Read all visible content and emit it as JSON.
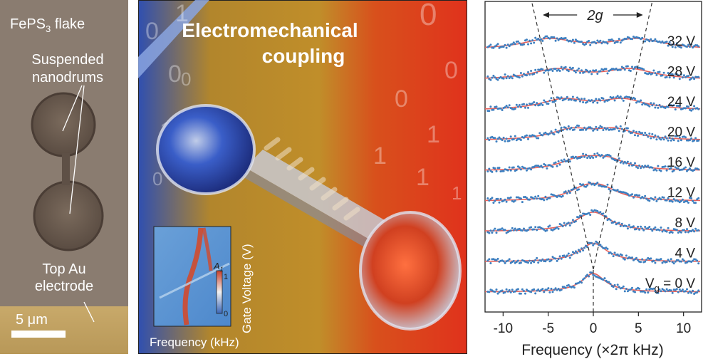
{
  "panel_a": {
    "label_flake": "FePS",
    "label_flake_sub": "3",
    "label_flake_suffix": " flake",
    "label_nanodrums_line1": "Suspended",
    "label_nanodrums_line2": "nanodrums",
    "label_electrode_line1": "Top Au",
    "label_electrode_line2": "electrode",
    "scale_bar_label": "5 μm"
  },
  "panel_b": {
    "title_line1": "Electromechanical",
    "title_line2": "coupling",
    "binary_digits": [
      "0",
      "1",
      "0",
      "1",
      "0",
      "0",
      "0",
      "1",
      "1",
      "1",
      "0",
      "0",
      "1"
    ],
    "inset": {
      "xlabel": "Frequency (kHz)",
      "ylabel": "Gate Voltage (V)",
      "colorbar_label": "A",
      "colorbar_label_sub": "1",
      "colorbar_max": "1",
      "colorbar_min": "0"
    }
  },
  "chart_data": {
    "type": "line",
    "xlabel": "Frequency (×2π kHz)",
    "xlim": [
      -12,
      12
    ],
    "xticks": [
      "-10",
      "-5",
      "0",
      "5",
      "10"
    ],
    "annotation": "2g",
    "series": [
      {
        "voltage": "V",
        "voltage_sub": "g",
        "voltage_value": " = 0 V",
        "split": 0.0,
        "fit_color": "#e8605a",
        "data_color": "#3d7fc0"
      },
      {
        "voltage": "4 V",
        "split": 0.2
      },
      {
        "voltage": "8 V",
        "split": 0.5
      },
      {
        "voltage": "12 V",
        "split": 0.9
      },
      {
        "voltage": "16 V",
        "split": 1.5
      },
      {
        "voltage": "20 V",
        "split": 2.4
      },
      {
        "voltage": "24 V",
        "split": 3.3
      },
      {
        "voltage": "28 V",
        "split": 4.1
      },
      {
        "voltage": "32 V",
        "split": 4.9
      }
    ]
  }
}
